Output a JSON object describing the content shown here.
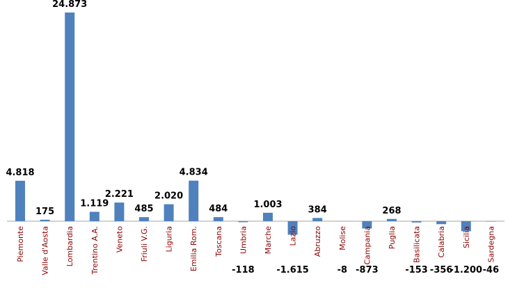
{
  "chart_data": {
    "type": "bar",
    "categories": [
      "Piemonte",
      "Valle d'Aosta",
      "Lombardia",
      "Trentino A.A.",
      "Veneto",
      "Friuli V.G.",
      "Liguria",
      "Emilia Rom.",
      "Toscana",
      "Umbria",
      "Marche",
      "Lazio",
      "Abruzzo",
      "Molise",
      "Campania",
      "Puglia",
      "Basilicata",
      "Calabria",
      "Sicilia",
      "Sardegna"
    ],
    "values": [
      4818,
      175,
      24873,
      1119,
      2221,
      485,
      2020,
      4834,
      484,
      -118,
      1003,
      -1615,
      384,
      -8,
      -873,
      268,
      -153,
      -356,
      -1200,
      -46
    ],
    "value_labels": [
      "4.818",
      "175",
      "24.873",
      "1.119",
      "2.221",
      "485",
      "2.020",
      "4.834",
      "484",
      "-118",
      "1.003",
      "-1.615",
      "384",
      "-8",
      "-873",
      "268",
      "-153",
      "-356",
      "-1.200",
      "-46"
    ],
    "color": "#4f81bd",
    "category_color": "#8b0000"
  }
}
